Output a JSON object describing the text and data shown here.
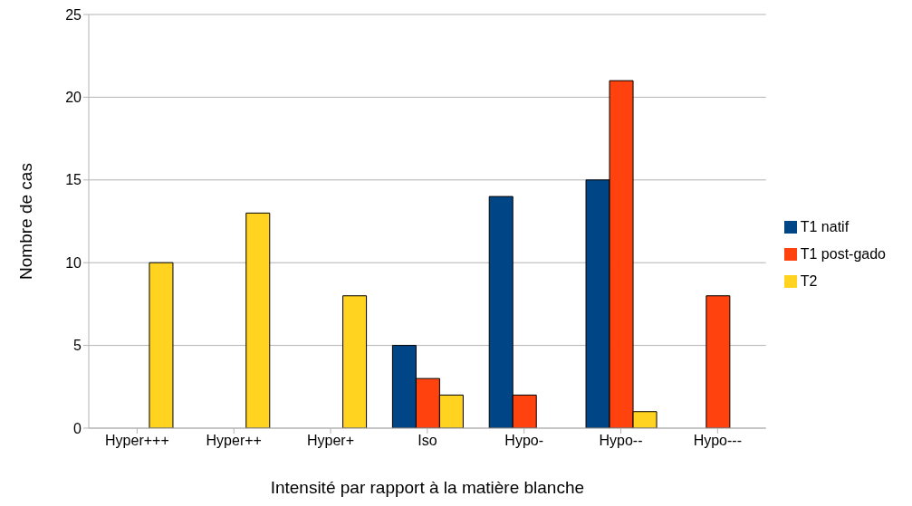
{
  "chart_data": {
    "type": "bar",
    "xlabel": "Intensité par rapport à la matière blanche",
    "ylabel": "Nombre de cas",
    "categories": [
      "Hyper+++",
      "Hyper++",
      "Hyper+",
      "Iso",
      "Hypo-",
      "Hypo--",
      "Hypo---"
    ],
    "series": [
      {
        "name": "T1 natif",
        "color": "#004586",
        "values": [
          0,
          0,
          0,
          5,
          14,
          15,
          0
        ]
      },
      {
        "name": "T1 post-gado",
        "color": "#ff420e",
        "values": [
          0,
          0,
          0,
          3,
          2,
          21,
          8
        ]
      },
      {
        "name": "T2",
        "color": "#ffd320",
        "values": [
          10,
          13,
          8,
          2,
          0,
          1,
          0
        ]
      }
    ],
    "ylim": [
      0,
      25
    ],
    "yticks": [
      0,
      5,
      10,
      15,
      20,
      25
    ],
    "grid": "y",
    "legend": "right"
  }
}
